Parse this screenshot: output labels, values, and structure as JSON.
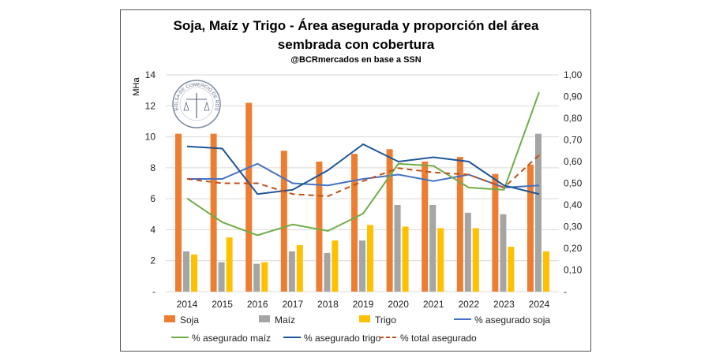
{
  "chart_data": {
    "type": "bar+line",
    "title_line1": "Soja, Maíz y Trigo - Área asegurada y proporción del área",
    "title_line2": "sembrada con cobertura",
    "subtitle": "@BCRmercados en base a SSN",
    "ylabel": "MHa",
    "ylim": [
      0,
      14
    ],
    "y2lim": [
      0,
      1.0
    ],
    "yticks": [
      "-",
      "2",
      "4",
      "6",
      "8",
      "10",
      "12",
      "14"
    ],
    "y2ticks": [
      "-",
      "0,10",
      "0,20",
      "0,30",
      "0,40",
      "0,50",
      "0,60",
      "0,70",
      "0,80",
      "0,90",
      "1,00"
    ],
    "grid": true,
    "legend_position": "bottom",
    "logo_text": "BOLSA DE COMERCIO DE ROSARIO",
    "categories": [
      "2014",
      "2015",
      "2016",
      "2017",
      "2018",
      "2019",
      "2020",
      "2021",
      "2022",
      "2023",
      "2024"
    ],
    "bars": [
      {
        "name": "Soja",
        "color": "#ED7D31",
        "values": [
          10.2,
          10.2,
          12.2,
          9.1,
          8.4,
          8.9,
          9.2,
          8.4,
          8.7,
          7.6,
          8.2
        ]
      },
      {
        "name": "Maíz",
        "color": "#A5A5A5",
        "values": [
          2.6,
          1.9,
          1.8,
          2.6,
          2.5,
          3.3,
          5.6,
          5.6,
          5.1,
          5.0,
          10.2
        ]
      },
      {
        "name": "Trigo",
        "color": "#FFC000",
        "values": [
          2.4,
          3.5,
          1.9,
          3.0,
          3.3,
          4.3,
          4.2,
          4.1,
          4.1,
          2.9,
          2.6
        ]
      }
    ],
    "lines": [
      {
        "name": "% asegurado soja",
        "color": "#4472C4",
        "dashed": false,
        "values": [
          0.52,
          0.52,
          0.59,
          0.5,
          0.49,
          0.52,
          0.54,
          0.51,
          0.54,
          0.48,
          0.49
        ]
      },
      {
        "name": "% asegurado maíz",
        "color": "#70AD47",
        "dashed": false,
        "values": [
          0.43,
          0.32,
          0.26,
          0.31,
          0.28,
          0.36,
          0.59,
          0.58,
          0.48,
          0.47,
          0.92
        ]
      },
      {
        "name": "% asegurado trigo",
        "color": "#1F5597",
        "dashed": false,
        "values": [
          0.67,
          0.66,
          0.45,
          0.47,
          0.56,
          0.68,
          0.6,
          0.62,
          0.6,
          0.49,
          0.45
        ]
      },
      {
        "name": "% total asegurado",
        "color": "#C0501A",
        "dashed": true,
        "values": [
          0.52,
          0.5,
          0.5,
          0.45,
          0.44,
          0.51,
          0.57,
          0.55,
          0.54,
          0.48,
          0.63
        ]
      }
    ]
  }
}
